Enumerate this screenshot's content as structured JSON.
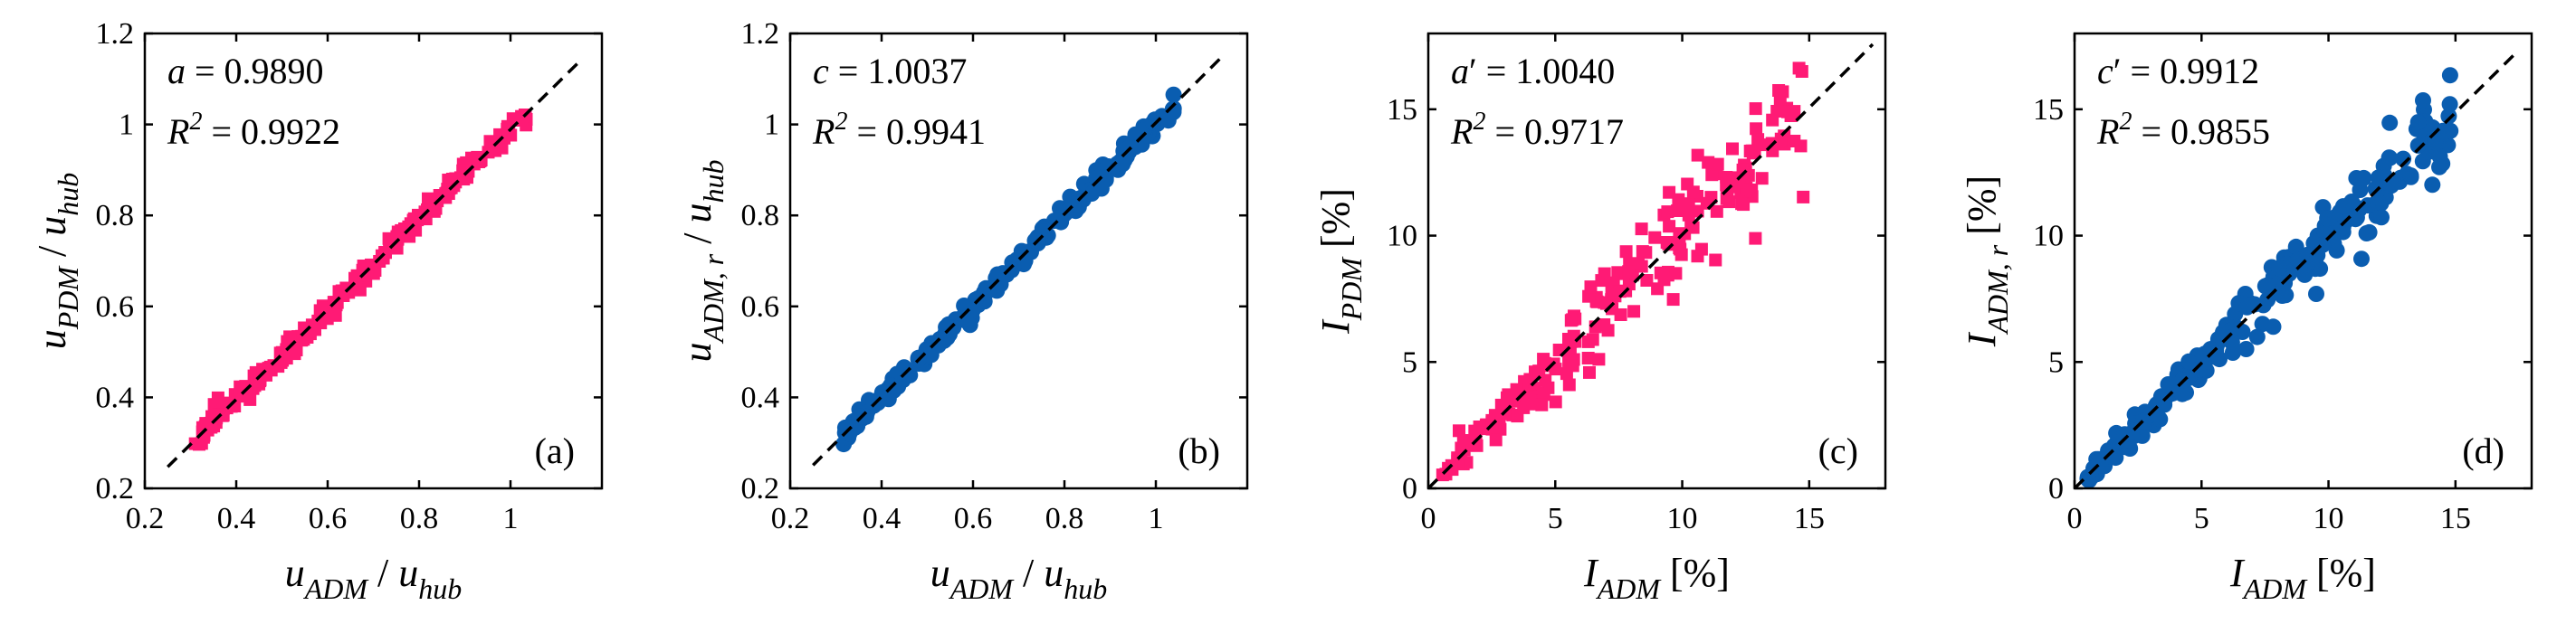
{
  "figure": {
    "colors": {
      "pink": "#ff1a75",
      "blue": "#0a5db0",
      "axis": "#000000",
      "fit_line": "#000000"
    }
  },
  "chart_data": [
    {
      "id": "a",
      "type": "scatter",
      "panel_label": "(a)",
      "marker": "square",
      "color": "#ff1a75",
      "xlim": [
        0.2,
        1.2
      ],
      "ylim": [
        0.2,
        1.2
      ],
      "xticks": [
        "0.2",
        "0.4",
        "0.6",
        "0.8",
        "1"
      ],
      "yticks": [
        "0.2",
        "0.4",
        "0.6",
        "0.8",
        "1",
        "1.2"
      ],
      "xlabel": {
        "base": "u",
        "sub": "ADM",
        "den_base": "u",
        "den_sub": "hub",
        "unit": ""
      },
      "ylabel": {
        "base": "u",
        "sub": "PDM",
        "den_base": "u",
        "den_sub": "hub",
        "unit": ""
      },
      "fit": {
        "name": "a",
        "prime": "",
        "value": "0.9890",
        "r2": "0.9922",
        "slope": 0.989,
        "x_range": [
          0.25,
          1.15
        ]
      },
      "scatter_params": {
        "n": 230,
        "xmin": 0.31,
        "xmax": 1.04,
        "slope": 0.989,
        "noise": 0.012,
        "seed": 11
      }
    },
    {
      "id": "b",
      "type": "scatter",
      "panel_label": "(b)",
      "marker": "circle",
      "color": "#0a5db0",
      "xlim": [
        0.2,
        1.2
      ],
      "ylim": [
        0.2,
        1.2
      ],
      "xticks": [
        "0.2",
        "0.4",
        "0.6",
        "0.8",
        "1"
      ],
      "yticks": [
        "0.2",
        "0.4",
        "0.6",
        "0.8",
        "1",
        "1.2"
      ],
      "xlabel": {
        "base": "u",
        "sub": "ADM",
        "den_base": "u",
        "den_sub": "hub",
        "unit": ""
      },
      "ylabel": {
        "base": "u",
        "sub": "ADM, r",
        "den_base": "u",
        "den_sub": "hub",
        "unit": ""
      },
      "fit": {
        "name": "c",
        "prime": "",
        "value": "1.0037",
        "r2": "0.9941",
        "slope": 1.0037,
        "x_range": [
          0.25,
          1.15
        ]
      },
      "scatter_params": {
        "n": 230,
        "xmin": 0.31,
        "xmax": 1.04,
        "slope": 1.0037,
        "noise": 0.01,
        "seed": 23
      }
    },
    {
      "id": "c",
      "type": "scatter",
      "panel_label": "(c)",
      "marker": "square",
      "color": "#ff1a75",
      "xlim": [
        0,
        18
      ],
      "ylim": [
        0,
        18
      ],
      "xticks": [
        "0",
        "5",
        "10",
        "15"
      ],
      "yticks": [
        "0",
        "5",
        "10",
        "15"
      ],
      "xlabel": {
        "base": "I",
        "sub": "ADM",
        "den_base": "",
        "den_sub": "",
        "unit": "[%]"
      },
      "ylabel": {
        "base": "I",
        "sub": "PDM",
        "den_base": "",
        "den_sub": "",
        "unit": "[%]"
      },
      "fit": {
        "name": "a",
        "prime": "′",
        "value": "1.0040",
        "r2": "0.9717",
        "slope": 1.004,
        "x_range": [
          0,
          17.5
        ]
      },
      "scatter_params": {
        "n": 230,
        "xmin": 0.4,
        "xmax": 14.8,
        "slope": 1.0,
        "noise": 0.75,
        "seed": 37
      }
    },
    {
      "id": "d",
      "type": "scatter",
      "panel_label": "(d)",
      "marker": "circle",
      "color": "#0a5db0",
      "xlim": [
        0,
        18
      ],
      "ylim": [
        0,
        18
      ],
      "xticks": [
        "0",
        "5",
        "10",
        "15"
      ],
      "yticks": [
        "0",
        "5",
        "10",
        "15"
      ],
      "xlabel": {
        "base": "I",
        "sub": "ADM",
        "den_base": "",
        "den_sub": "",
        "unit": "[%]"
      },
      "ylabel": {
        "base": "I",
        "sub": "ADM, r",
        "den_base": "",
        "den_sub": "",
        "unit": "[%]"
      },
      "fit": {
        "name": "c",
        "prime": "′",
        "value": "0.9912",
        "r2": "0.9855",
        "slope": 0.9912,
        "x_range": [
          0,
          17.5
        ]
      },
      "scatter_params": {
        "n": 230,
        "xmin": 0.4,
        "xmax": 14.8,
        "slope": 0.99,
        "noise": 0.5,
        "seed": 53
      }
    }
  ]
}
